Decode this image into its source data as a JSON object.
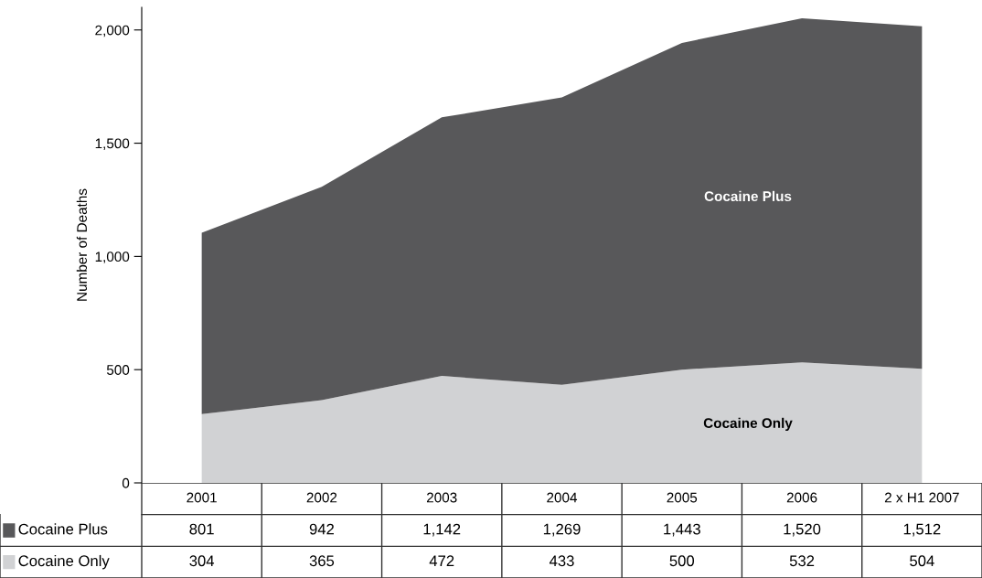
{
  "chart_data": {
    "type": "area",
    "stacked": true,
    "ylabel": "Number of Deaths",
    "categories": [
      "2001",
      "2002",
      "2003",
      "2004",
      "2005",
      "2006",
      "2 x H1 2007"
    ],
    "series": [
      {
        "name": "Cocaine Only",
        "color": "#d1d2d4",
        "values": [
          304,
          365,
          472,
          433,
          500,
          532,
          504
        ],
        "value_labels": [
          "304",
          "365",
          "472",
          "433",
          "500",
          "532",
          "504"
        ]
      },
      {
        "name": "Cocaine Plus",
        "color": "#58585a",
        "values": [
          801,
          942,
          1142,
          1269,
          1443,
          1520,
          1512
        ],
        "value_labels": [
          "801",
          "942",
          "1,142",
          "1,269",
          "1,443",
          "1,520",
          "1,512"
        ]
      }
    ],
    "ylim": [
      0,
      2100
    ],
    "yticks": [
      0,
      500,
      {
        "value": 1000,
        "label": "1,000"
      },
      {
        "value": 1500,
        "label": "1,500"
      },
      {
        "value": 2000,
        "label": "2,000"
      }
    ],
    "grid": false,
    "legend": "bottom left"
  }
}
